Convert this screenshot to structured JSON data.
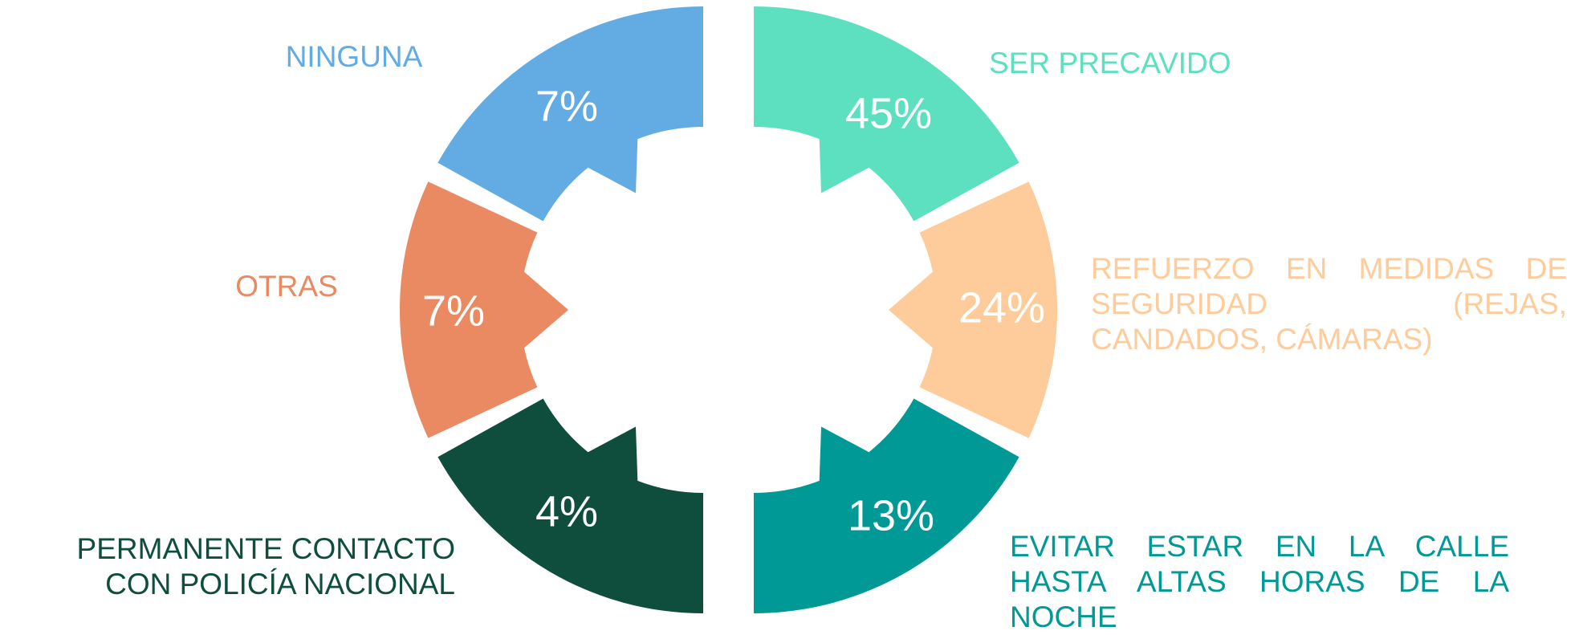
{
  "segments": [
    {
      "label": "NINGUNA",
      "percent": "7%",
      "color": "#62abe3"
    },
    {
      "label": "OTRAS",
      "percent": "7%",
      "color": "#e98a62"
    },
    {
      "label": "PERMANENTE CONTACTO CON POLICÍA NACIONAL",
      "percent": "4%",
      "color": "#0f4e3c"
    },
    {
      "label": "SER PRECAVIDO",
      "percent": "45%",
      "color": "#5ce0bf"
    },
    {
      "label": "REFUERZO EN MEDIDAS DE SEGURIDAD (REJAS, CANDADOS, CÁMARAS)",
      "percent": "24%",
      "color": "#fecb9a"
    },
    {
      "label": "EVITAR ESTAR EN LA CALLE HASTA ALTAS HORAS DE LA NOCHE",
      "percent": "13%",
      "color": "#009995"
    }
  ]
}
